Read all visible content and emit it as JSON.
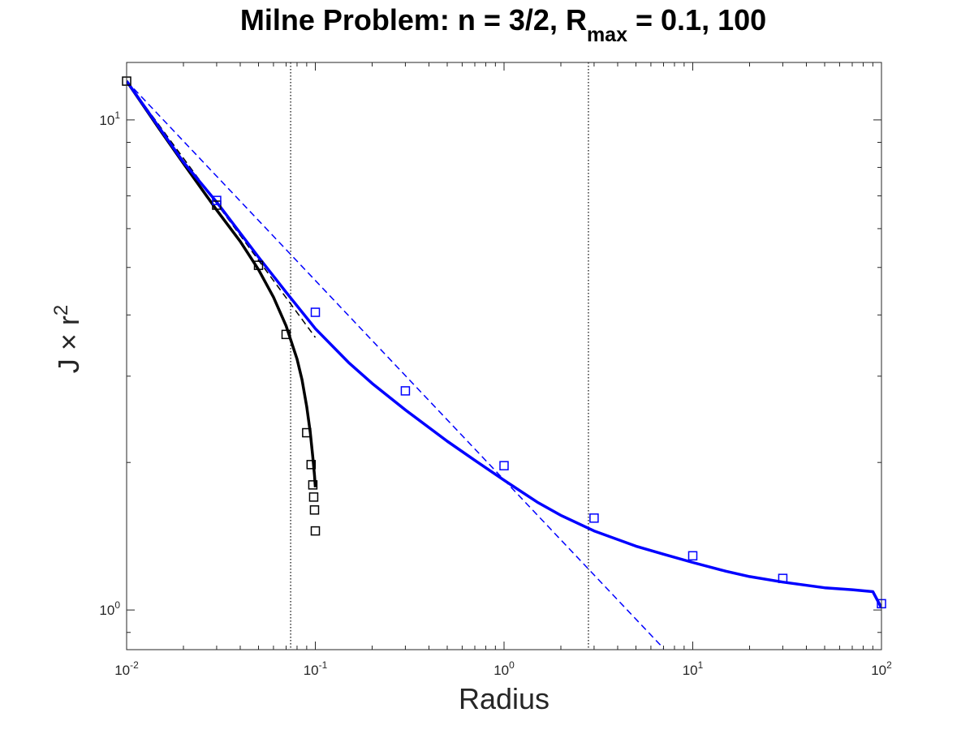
{
  "chart_data": {
    "type": "line",
    "title": "Milne Problem: n = 3/2, R",
    "title_subscript": "max",
    "title_suffix": " = 0.1, 100",
    "xlabel": "Radius",
    "ylabel": "J × r",
    "ylabel_superscript": "2",
    "xscale": "log",
    "yscale": "log",
    "xlim": [
      0.01,
      100
    ],
    "ylim": [
      0.83,
      13.1
    ],
    "grid": false,
    "legend": "none",
    "x_ticks": [
      {
        "base": "10",
        "exp": "-2",
        "value": 0.01
      },
      {
        "base": "10",
        "exp": "-1",
        "value": 0.1
      },
      {
        "base": "10",
        "exp": "0",
        "value": 1
      },
      {
        "base": "10",
        "exp": "1",
        "value": 10
      },
      {
        "base": "10",
        "exp": "2",
        "value": 100
      }
    ],
    "y_ticks": [
      {
        "base": "10",
        "exp": "0",
        "value": 1
      },
      {
        "base": "10",
        "exp": "1",
        "value": 10
      }
    ],
    "vlines": [
      {
        "x": 0.074,
        "color": "#000000",
        "style": "dotted"
      },
      {
        "x": 2.8,
        "color": "#000000",
        "style": "dotted"
      }
    ],
    "series": [
      {
        "color": "#000000",
        "style": "solid",
        "width": 3.5,
        "x": [
          0.01,
          0.015,
          0.02,
          0.03,
          0.04,
          0.05,
          0.06,
          0.07,
          0.08,
          0.085,
          0.09,
          0.094,
          0.097,
          0.099,
          0.1
        ],
        "y": [
          12.0,
          9.55,
          8.15,
          6.55,
          5.65,
          4.95,
          4.35,
          3.8,
          3.25,
          2.95,
          2.6,
          2.3,
          2.05,
          1.88,
          1.78
        ]
      },
      {
        "color": "#000000",
        "style": "dashed",
        "width": 1.5,
        "x": [
          0.01,
          0.1
        ],
        "y": [
          12.0,
          3.6
        ]
      },
      {
        "color": "#0000ff",
        "style": "solid",
        "width": 3.5,
        "x": [
          0.01,
          0.02,
          0.03,
          0.05,
          0.07,
          0.1,
          0.15,
          0.2,
          0.3,
          0.5,
          0.7,
          1.0,
          1.5,
          2.0,
          3.0,
          5.0,
          7.0,
          10,
          15,
          20,
          30,
          50,
          70,
          90,
          100
        ],
        "y": [
          12.0,
          8.2,
          6.8,
          5.25,
          4.45,
          3.75,
          3.2,
          2.9,
          2.56,
          2.21,
          2.02,
          1.84,
          1.66,
          1.56,
          1.45,
          1.35,
          1.3,
          1.25,
          1.2,
          1.17,
          1.14,
          1.11,
          1.1,
          1.09,
          1.01
        ]
      },
      {
        "color": "#0000ff",
        "style": "dashed",
        "width": 1.5,
        "x": [
          0.01,
          7.0
        ],
        "y": [
          12.0,
          0.835
        ]
      }
    ],
    "markers": [
      {
        "color": "#000000",
        "x": [
          0.01,
          0.03,
          0.05,
          0.07,
          0.09,
          0.095,
          0.097,
          0.098,
          0.099,
          0.1
        ],
        "y": [
          12.0,
          6.7,
          5.05,
          3.65,
          2.3,
          1.98,
          1.8,
          1.7,
          1.6,
          1.45
        ]
      },
      {
        "color": "#0000ff",
        "x": [
          0.03,
          0.1,
          0.3,
          1,
          3,
          10,
          30,
          100
        ],
        "y": [
          6.85,
          4.05,
          2.8,
          1.97,
          1.54,
          1.29,
          1.16,
          1.03
        ]
      }
    ]
  }
}
